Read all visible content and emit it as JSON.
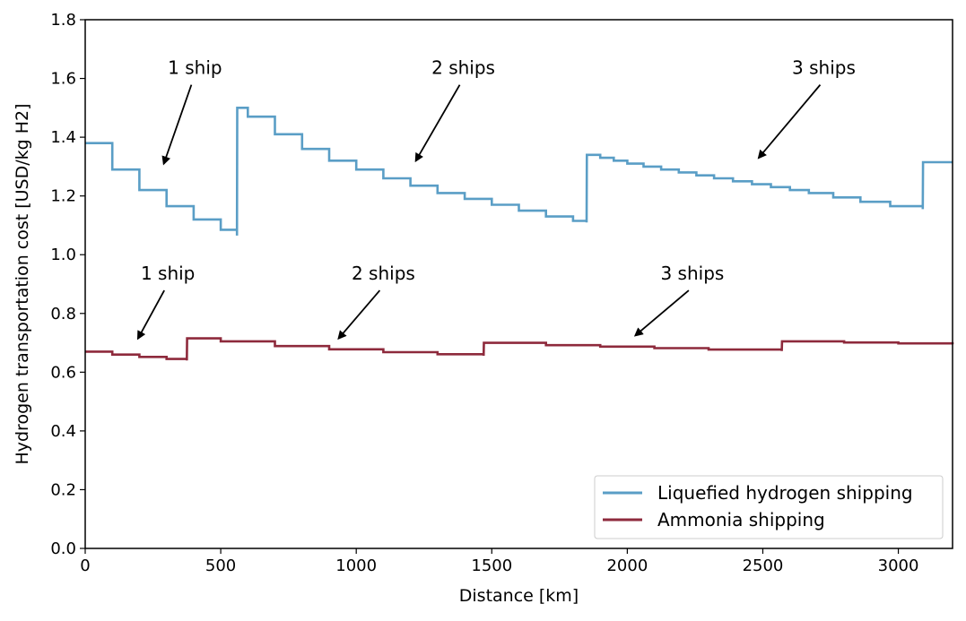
{
  "chart_data": {
    "type": "line",
    "xlabel": "Distance [km]",
    "ylabel": "Hydrogen transportation cost [USD/kg H2]",
    "xlim": [
      0,
      3200
    ],
    "ylim": [
      0,
      1.8
    ],
    "xticks": [
      0,
      500,
      1000,
      1500,
      2000,
      2500,
      3000
    ],
    "yticks": [
      0.0,
      0.2,
      0.4,
      0.6,
      0.8,
      1.0,
      1.2,
      1.4,
      1.6,
      1.8
    ],
    "grid": false,
    "legend_position": "lower right",
    "series": [
      {
        "name": "Liquefied hydrogen shipping",
        "color": "#5a9ec6",
        "step": true,
        "x": [
          0,
          100,
          200,
          300,
          400,
          500,
          560,
          561,
          600,
          700,
          800,
          900,
          1000,
          1100,
          1200,
          1300,
          1400,
          1500,
          1600,
          1700,
          1800,
          1850,
          1851,
          1900,
          1950,
          2000,
          2060,
          2125,
          2190,
          2255,
          2320,
          2390,
          2460,
          2530,
          2600,
          2670,
          2760,
          2860,
          2970,
          3090,
          3091,
          3200
        ],
        "values": [
          1.38,
          1.29,
          1.22,
          1.165,
          1.12,
          1.085,
          1.065,
          1.5,
          1.47,
          1.41,
          1.36,
          1.32,
          1.29,
          1.26,
          1.235,
          1.21,
          1.19,
          1.17,
          1.15,
          1.13,
          1.115,
          1.11,
          1.34,
          1.33,
          1.32,
          1.31,
          1.3,
          1.29,
          1.28,
          1.27,
          1.26,
          1.25,
          1.24,
          1.23,
          1.22,
          1.21,
          1.195,
          1.18,
          1.165,
          1.155,
          1.315,
          1.315
        ]
      },
      {
        "name": "Ammonia shipping",
        "color": "#8e2a3c",
        "step": true,
        "x": [
          0,
          100,
          200,
          300,
          375,
          376,
          500,
          700,
          900,
          1100,
          1300,
          1470,
          1471,
          1700,
          1900,
          2100,
          2300,
          2570,
          2571,
          2800,
          3000,
          3200
        ],
        "values": [
          0.67,
          0.66,
          0.652,
          0.645,
          0.64,
          0.715,
          0.705,
          0.689,
          0.678,
          0.668,
          0.661,
          0.656,
          0.7,
          0.692,
          0.687,
          0.682,
          0.677,
          0.672,
          0.705,
          0.701,
          0.698,
          0.695
        ]
      }
    ],
    "annotations": [
      {
        "text": "1 ship",
        "x": 405,
        "y": 1.615,
        "arrow_to": [
          290,
          1.31
        ]
      },
      {
        "text": "2 ships",
        "x": 1395,
        "y": 1.615,
        "arrow_to": [
          1220,
          1.32
        ]
      },
      {
        "text": "3 ships",
        "x": 2725,
        "y": 1.615,
        "arrow_to": [
          2485,
          1.33
        ]
      },
      {
        "text": "1 ship",
        "x": 305,
        "y": 0.915,
        "arrow_to": [
          195,
          0.715
        ]
      },
      {
        "text": "2 ships",
        "x": 1100,
        "y": 0.915,
        "arrow_to": [
          935,
          0.715
        ]
      },
      {
        "text": "3 ships",
        "x": 2240,
        "y": 0.915,
        "arrow_to": [
          2030,
          0.725
        ]
      }
    ]
  }
}
